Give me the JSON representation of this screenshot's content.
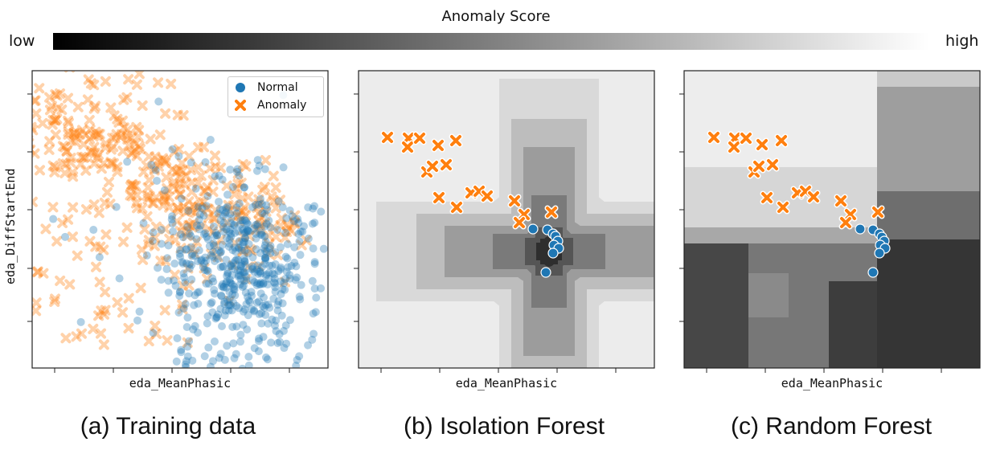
{
  "colorbar": {
    "title": "Anomaly Score",
    "low_label": "low",
    "high_label": "high"
  },
  "colors": {
    "normal": "#1f77b4",
    "anomaly": "#ff7f0e"
  },
  "axes": {
    "xlabel": "eda_MeanPhasic",
    "ylabel": "eda_DiffStartEnd"
  },
  "legend": {
    "normal_label": "Normal",
    "anomaly_label": "Anomaly",
    "placement": "top-right"
  },
  "captions": {
    "a": "(a) Training data",
    "b": "(b) Isolation Forest",
    "c": "(c) Random Forest"
  },
  "chart_data": [
    {
      "type": "scatter",
      "panel": "a",
      "series": [
        {
          "name": "Normal",
          "marker": "circle",
          "alpha": 0.35
        },
        {
          "name": "Anomaly",
          "marker": "x",
          "alpha": 0.35
        }
      ],
      "grid": false,
      "legend_placement": "top-right"
    },
    {
      "type": "heatmap",
      "panel": "b",
      "overlay": "scatter",
      "description_score": "grayscale anomaly-score contour, darkest at normal cluster",
      "legend": false
    },
    {
      "type": "heatmap",
      "panel": "c",
      "overlay": "scatter",
      "description_score": "grayscale anomaly-score decision regions, dark in lower-right",
      "legend": false
    }
  ]
}
